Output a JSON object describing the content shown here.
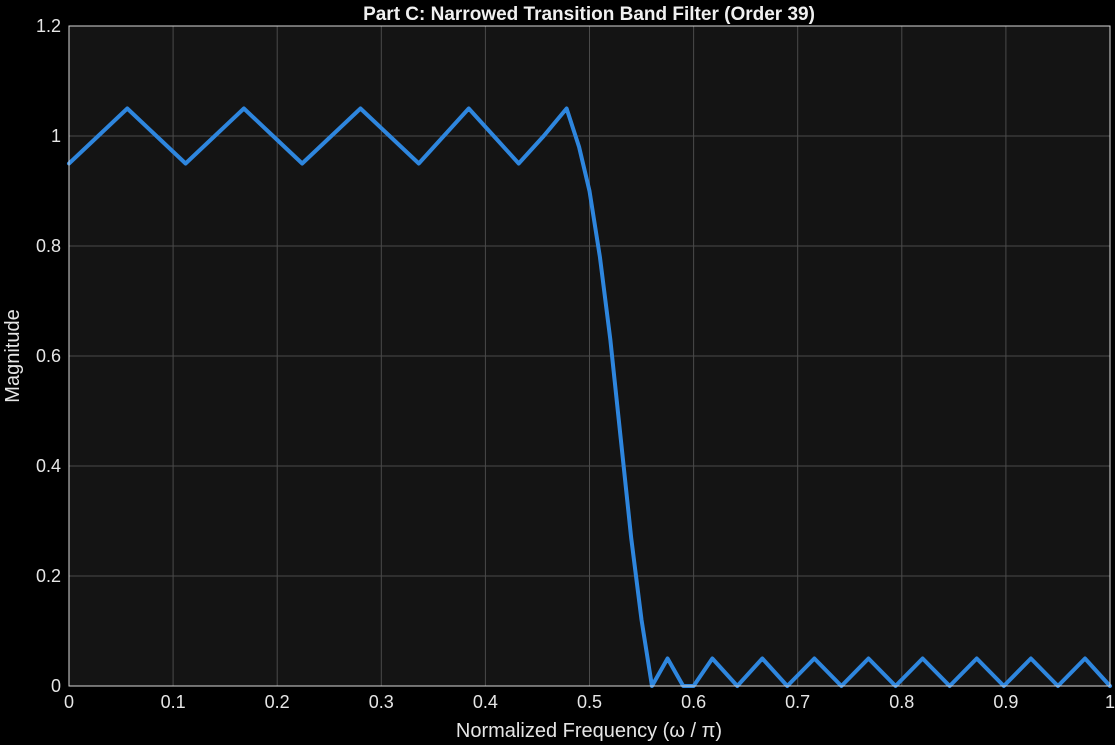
{
  "chart_data": {
    "type": "line",
    "title": "Part C: Narrowed Transition Band Filter (Order 39)",
    "xlabel": "Normalized Frequency (ω / π)",
    "ylabel": "Magnitude",
    "xlim": [
      0,
      1
    ],
    "ylim": [
      0,
      1.2
    ],
    "x_ticks": [
      "0",
      "0.1",
      "0.2",
      "0.3",
      "0.4",
      "0.5",
      "0.6",
      "0.7",
      "0.8",
      "0.9",
      "1"
    ],
    "y_ticks": [
      "0",
      "0.2",
      "0.4",
      "0.6",
      "0.8",
      "1",
      "1.2"
    ],
    "grid": true,
    "series": [
      {
        "color": "#2e86de",
        "x": [
          0,
          0.028,
          0.056,
          0.084,
          0.112,
          0.14,
          0.168,
          0.196,
          0.224,
          0.252,
          0.28,
          0.308,
          0.336,
          0.36,
          0.384,
          0.408,
          0.432,
          0.456,
          0.478,
          0.49,
          0.5,
          0.51,
          0.52,
          0.53,
          0.54,
          0.55,
          0.56,
          0.575,
          0.59,
          0.6,
          0.618,
          0.642,
          0.666,
          0.69,
          0.716,
          0.742,
          0.768,
          0.794,
          0.82,
          0.846,
          0.872,
          0.898,
          0.924,
          0.95,
          0.976,
          1.0
        ],
        "y": [
          0.95,
          1.0,
          1.05,
          1.0,
          0.95,
          1.0,
          1.05,
          1.0,
          0.95,
          1.0,
          1.05,
          1.0,
          0.95,
          1.0,
          1.05,
          1.0,
          0.95,
          1.0,
          1.05,
          0.98,
          0.9,
          0.78,
          0.63,
          0.45,
          0.27,
          0.12,
          0.0,
          0.05,
          0.0,
          0.0,
          0.05,
          0.0,
          0.05,
          0.0,
          0.05,
          0.0,
          0.05,
          0.0,
          0.05,
          0.0,
          0.05,
          0.0,
          0.05,
          0.0,
          0.05,
          0.0
        ]
      }
    ]
  }
}
